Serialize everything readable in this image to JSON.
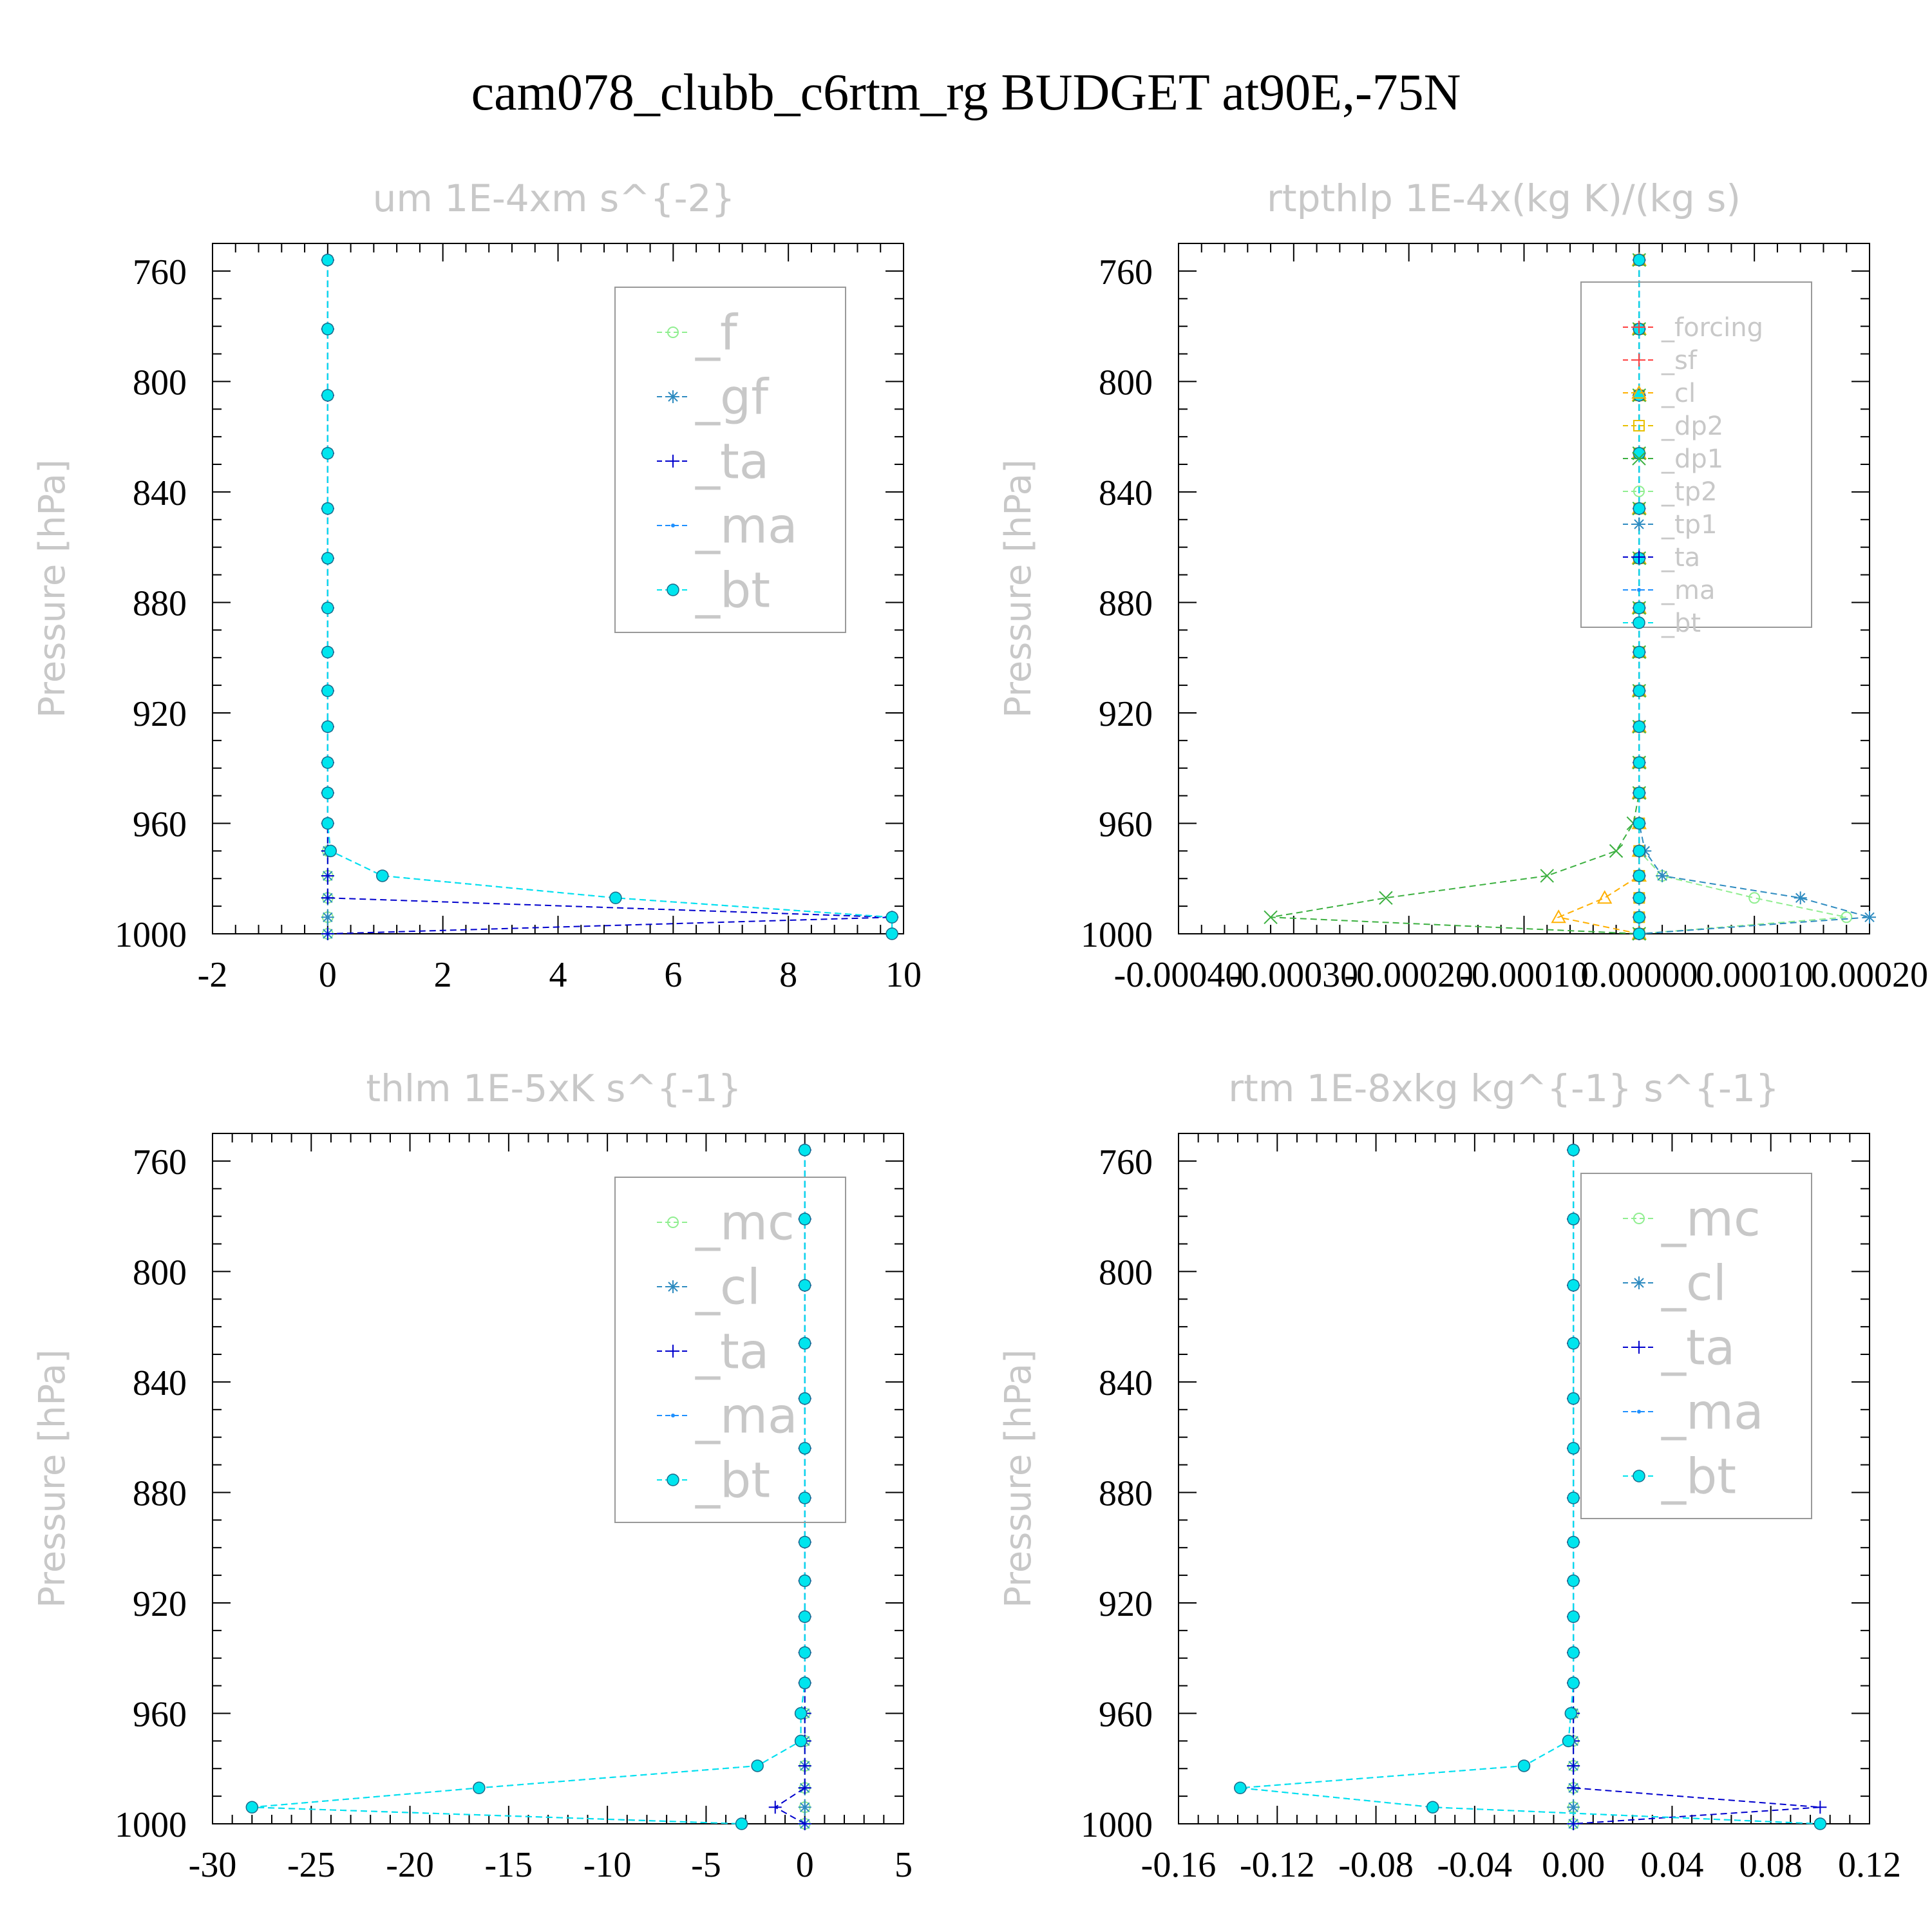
{
  "title": "cam078_clubb_c6rtm_rg  BUDGET at90E,-75N",
  "chart_data": [
    {
      "type": "line",
      "title": "um   1E-4xm s^{-2}",
      "ylabel": "Pressure [hPa]",
      "xlim": [
        -2,
        10
      ],
      "ylim": [
        1000,
        750
      ],
      "xticks": [
        "-2",
        "0",
        "2",
        "4",
        "6",
        "8",
        "10"
      ],
      "xtick_values": [
        -2,
        0,
        2,
        4,
        6,
        8,
        10
      ],
      "yticks": [
        "760",
        "800",
        "840",
        "880",
        "920",
        "960",
        "1000"
      ],
      "ytick_values": [
        760,
        800,
        840,
        880,
        920,
        960,
        1000
      ],
      "levels": [
        756,
        781,
        805,
        826,
        846,
        864,
        882,
        898,
        912,
        925,
        938,
        949,
        960,
        970,
        979,
        987,
        994,
        1000
      ],
      "series": [
        {
          "name": "_f",
          "color": "#90ee90",
          "marker": "circle-open",
          "values": [
            0,
            0,
            0,
            0,
            0,
            0,
            0,
            0,
            0,
            0,
            0,
            0,
            0,
            0,
            0,
            0,
            0,
            0
          ]
        },
        {
          "name": "_gf",
          "color": "#2e8bc0",
          "marker": "asterisk",
          "values": [
            0,
            0,
            0,
            0,
            0,
            0,
            0,
            0,
            0,
            0,
            0,
            0,
            0,
            0,
            0,
            0,
            0,
            0
          ]
        },
        {
          "name": "_ta",
          "color": "#0000cd",
          "marker": "plus",
          "values": [
            0,
            0,
            0,
            0,
            0,
            0,
            0,
            0,
            0,
            0,
            0,
            0,
            0,
            0,
            0,
            0,
            9.8,
            0
          ]
        },
        {
          "name": "_ma",
          "color": "#1e90ff",
          "marker": "dot",
          "values": [
            0,
            0,
            0,
            0,
            0,
            0,
            0,
            0,
            0,
            0,
            0,
            0,
            0,
            0.05,
            0.95,
            5.0,
            9.8,
            9.8
          ]
        },
        {
          "name": "_bt",
          "color": "#00e5ee",
          "marker": "filled-circle",
          "values": [
            0,
            0,
            0,
            0,
            0,
            0,
            0,
            0,
            0,
            0,
            0,
            0,
            0,
            0.05,
            0.95,
            5.0,
            9.8,
            9.8
          ]
        }
      ],
      "legend": "top-right"
    },
    {
      "type": "line",
      "title": "rtpthlp   1E-4x(kg K)/(kg s)",
      "ylabel": "Pressure [hPa]",
      "xlim": [
        -0.0004,
        0.0002
      ],
      "ylim": [
        1000,
        750
      ],
      "xticks": [
        "-0.00040",
        "-0.00030",
        "-0.00020",
        "-0.00010",
        "0.00000",
        "0.00010",
        "0.00020"
      ],
      "xtick_values": [
        -0.0004,
        -0.0003,
        -0.0002,
        -0.0001,
        0,
        0.0001,
        0.0002
      ],
      "yticks": [
        "760",
        "800",
        "840",
        "880",
        "920",
        "960",
        "1000"
      ],
      "ytick_values": [
        760,
        800,
        840,
        880,
        920,
        960,
        1000
      ],
      "levels": [
        756,
        781,
        805,
        826,
        846,
        864,
        882,
        898,
        912,
        925,
        938,
        949,
        960,
        970,
        979,
        987,
        994,
        1000
      ],
      "series": [
        {
          "name": "_forcing",
          "color": "#ff4040",
          "marker": "plus",
          "values": [
            0,
            0,
            0,
            0,
            0,
            0,
            0,
            0,
            0,
            0,
            0,
            0,
            0,
            0,
            0,
            0,
            0,
            0
          ]
        },
        {
          "name": "_sf",
          "color": "#ff4040",
          "marker": "plus",
          "values": [
            0,
            0,
            0,
            0,
            0,
            0,
            0,
            0,
            0,
            0,
            0,
            0,
            0,
            0,
            0,
            0,
            0,
            0
          ]
        },
        {
          "name": "_cl",
          "color": "#ffb000",
          "marker": "triangle",
          "values": [
            0,
            0,
            0,
            0,
            0,
            0,
            0,
            0,
            0,
            0,
            0,
            0,
            0,
            0,
            0,
            -3e-05,
            -7e-05,
            0
          ]
        },
        {
          "name": "_dp2",
          "color": "#e8c000",
          "marker": "square",
          "values": [
            0,
            0,
            0,
            0,
            0,
            0,
            0,
            0,
            0,
            0,
            0,
            0,
            0,
            0,
            0,
            0,
            0,
            0
          ]
        },
        {
          "name": "_dp1",
          "color": "#3cb040",
          "marker": "x",
          "values": [
            0,
            0,
            0,
            0,
            0,
            0,
            0,
            0,
            0,
            0,
            0,
            0,
            -5e-06,
            -2e-05,
            -8e-05,
            -0.00022,
            -0.00032,
            0
          ]
        },
        {
          "name": "_tp2",
          "color": "#90ee90",
          "marker": "circle-open",
          "values": [
            0,
            0,
            0,
            0,
            0,
            0,
            0,
            0,
            0,
            0,
            0,
            0,
            0,
            0,
            2e-05,
            0.0001,
            0.00018,
            0
          ]
        },
        {
          "name": "_tp1",
          "color": "#2e8bc0",
          "marker": "asterisk",
          "values": [
            0,
            0,
            0,
            0,
            0,
            0,
            0,
            0,
            0,
            0,
            0,
            0,
            0,
            5e-06,
            2e-05,
            0.00014,
            0.0002,
            0
          ]
        },
        {
          "name": "_ta",
          "color": "#0000cd",
          "marker": "plus",
          "values": [
            0,
            0,
            0,
            0,
            0,
            0,
            0,
            0,
            0,
            0,
            0,
            0,
            0,
            0,
            0,
            0,
            0,
            0
          ]
        },
        {
          "name": "_ma",
          "color": "#1e90ff",
          "marker": "dot",
          "values": [
            0,
            0,
            0,
            0,
            0,
            0,
            0,
            0,
            0,
            0,
            0,
            0,
            0,
            0,
            0,
            0,
            0,
            0
          ]
        },
        {
          "name": "_bt",
          "color": "#00e5ee",
          "marker": "filled-circle",
          "values": [
            0,
            0,
            0,
            0,
            0,
            0,
            0,
            0,
            0,
            0,
            0,
            0,
            0,
            0,
            0,
            0,
            0,
            0
          ]
        }
      ],
      "legend": "top-right"
    },
    {
      "type": "line",
      "title": "thlm   1E-5xK s^{-1}",
      "ylabel": "Pressure [hPa]",
      "xlim": [
        -30,
        5
      ],
      "ylim": [
        1000,
        750
      ],
      "xticks": [
        "-30",
        "-25",
        "-20",
        "-15",
        "-10",
        "-5",
        "0",
        "5"
      ],
      "xtick_values": [
        -30,
        -25,
        -20,
        -15,
        -10,
        -5,
        0,
        5
      ],
      "yticks": [
        "760",
        "800",
        "840",
        "880",
        "920",
        "960",
        "1000"
      ],
      "ytick_values": [
        760,
        800,
        840,
        880,
        920,
        960,
        1000
      ],
      "levels": [
        756,
        781,
        805,
        826,
        846,
        864,
        882,
        898,
        912,
        925,
        938,
        949,
        960,
        970,
        979,
        987,
        994,
        1000
      ],
      "series": [
        {
          "name": "_mc",
          "color": "#90ee90",
          "marker": "circle-open",
          "values": [
            0,
            0,
            0,
            0,
            0,
            0,
            0,
            0,
            0,
            0,
            0,
            0,
            0,
            0,
            0,
            0,
            0,
            0
          ]
        },
        {
          "name": "_cl",
          "color": "#2e8bc0",
          "marker": "asterisk",
          "values": [
            0,
            0,
            0,
            0,
            0,
            0,
            0,
            0,
            0,
            0,
            0,
            0,
            0,
            0,
            0,
            0,
            0,
            0
          ]
        },
        {
          "name": "_ta",
          "color": "#0000cd",
          "marker": "plus",
          "values": [
            0,
            0,
            0,
            0,
            0,
            0,
            0,
            0,
            0,
            0,
            0,
            0,
            0,
            0,
            0,
            0,
            -1.5,
            0
          ]
        },
        {
          "name": "_ma",
          "color": "#1e90ff",
          "marker": "dot",
          "values": [
            0,
            0,
            0,
            0,
            0,
            0,
            0,
            0,
            0,
            0,
            0,
            0,
            -0.2,
            -0.2,
            -2.4,
            -16.5,
            -28.0,
            -3.2
          ]
        },
        {
          "name": "_bt",
          "color": "#00e5ee",
          "marker": "filled-circle",
          "values": [
            0,
            0,
            0,
            0,
            0,
            0,
            0,
            0,
            0,
            0,
            0,
            0,
            -0.2,
            -0.2,
            -2.4,
            -16.5,
            -28.0,
            -3.2
          ]
        }
      ],
      "legend": "top-right"
    },
    {
      "type": "line",
      "title": "rtm   1E-8xkg kg^{-1} s^{-1}",
      "ylabel": "Pressure [hPa]",
      "xlim": [
        -0.16,
        0.12
      ],
      "ylim": [
        1000,
        750
      ],
      "xticks": [
        "-0.16",
        "-0.12",
        "-0.08",
        "-0.04",
        "0.00",
        "0.04",
        "0.08",
        "0.12"
      ],
      "xtick_values": [
        -0.16,
        -0.12,
        -0.08,
        -0.04,
        0,
        0.04,
        0.08,
        0.12
      ],
      "yticks": [
        "760",
        "800",
        "840",
        "880",
        "920",
        "960",
        "1000"
      ],
      "ytick_values": [
        760,
        800,
        840,
        880,
        920,
        960,
        1000
      ],
      "levels": [
        756,
        781,
        805,
        826,
        846,
        864,
        882,
        898,
        912,
        925,
        938,
        949,
        960,
        970,
        979,
        987,
        994,
        1000
      ],
      "series": [
        {
          "name": "_mc",
          "color": "#90ee90",
          "marker": "circle-open",
          "values": [
            0,
            0,
            0,
            0,
            0,
            0,
            0,
            0,
            0,
            0,
            0,
            0,
            0,
            0,
            0,
            0,
            0,
            0
          ]
        },
        {
          "name": "_cl",
          "color": "#2e8bc0",
          "marker": "asterisk",
          "values": [
            0,
            0,
            0,
            0,
            0,
            0,
            0,
            0,
            0,
            0,
            0,
            0,
            0,
            0,
            0,
            0,
            0,
            0
          ]
        },
        {
          "name": "_ta",
          "color": "#0000cd",
          "marker": "plus",
          "values": [
            0,
            0,
            0,
            0,
            0,
            0,
            0,
            0,
            0,
            0,
            0,
            0,
            0,
            0,
            0,
            0,
            0.1,
            0
          ]
        },
        {
          "name": "_ma",
          "color": "#1e90ff",
          "marker": "dot",
          "values": [
            0,
            0,
            0,
            0,
            0,
            0,
            0,
            0,
            0,
            0,
            0,
            0,
            -0.001,
            -0.002,
            -0.02,
            -0.135,
            -0.057,
            0.1
          ]
        },
        {
          "name": "_bt",
          "color": "#00e5ee",
          "marker": "filled-circle",
          "values": [
            0,
            0,
            0,
            0,
            0,
            0,
            0,
            0,
            0,
            0,
            0,
            0,
            -0.001,
            -0.002,
            -0.02,
            -0.135,
            -0.057,
            0.1
          ]
        }
      ],
      "legend": "top-right"
    }
  ]
}
